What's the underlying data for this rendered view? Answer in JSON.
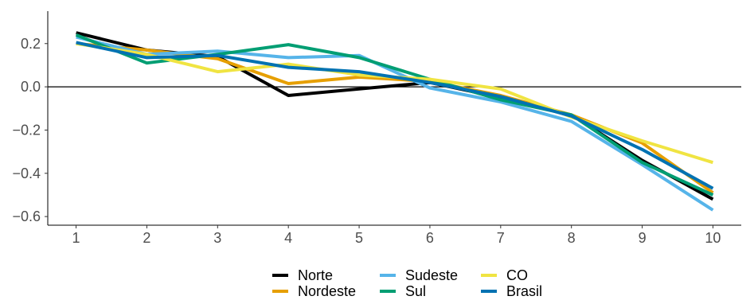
{
  "chart_data": {
    "type": "line",
    "title": "",
    "xlabel": "",
    "ylabel": "",
    "x": [
      1,
      2,
      3,
      4,
      5,
      6,
      7,
      8,
      9,
      10
    ],
    "xlim": [
      0.6,
      10.4
    ],
    "ylim": [
      -0.64,
      0.35
    ],
    "yticks": [
      0.2,
      0.0,
      -0.2,
      -0.4,
      -0.6
    ],
    "ytick_labels": [
      "0.2",
      "0.0",
      "−0.2",
      "−0.4",
      "−0.6"
    ],
    "xtick_labels": [
      "1",
      "2",
      "3",
      "4",
      "5",
      "6",
      "7",
      "8",
      "9",
      "10"
    ],
    "reference_line_y": 0,
    "grid": false,
    "legend_position": "bottom",
    "series": [
      {
        "name": "Norte",
        "color": "#000000",
        "values": [
          0.25,
          0.17,
          0.14,
          -0.04,
          -0.01,
          0.02,
          -0.05,
          -0.13,
          -0.34,
          -0.52
        ]
      },
      {
        "name": "Nordeste",
        "color": "#E69F00",
        "values": [
          0.2,
          0.17,
          0.13,
          0.015,
          0.045,
          0.025,
          -0.04,
          -0.13,
          -0.26,
          -0.49
        ]
      },
      {
        "name": "Sudeste",
        "color": "#56B4E9",
        "values": [
          0.23,
          0.15,
          0.165,
          0.135,
          0.145,
          -0.005,
          -0.07,
          -0.16,
          -0.36,
          -0.57
        ]
      },
      {
        "name": "Sul",
        "color": "#009E73",
        "values": [
          0.24,
          0.11,
          0.15,
          0.195,
          0.135,
          0.035,
          -0.06,
          -0.13,
          -0.35,
          -0.5
        ]
      },
      {
        "name": "CO",
        "color": "#F0E442",
        "values": [
          0.2,
          0.15,
          0.07,
          0.105,
          0.055,
          0.035,
          -0.01,
          -0.14,
          -0.25,
          -0.35
        ]
      },
      {
        "name": "Brasil",
        "color": "#0072B2",
        "values": [
          0.205,
          0.135,
          0.145,
          0.09,
          0.07,
          0.02,
          -0.045,
          -0.135,
          -0.29,
          -0.47
        ]
      }
    ],
    "legend_order": [
      "Norte",
      "Nordeste",
      "Sudeste",
      "Sul",
      "CO",
      "Brasil"
    ]
  }
}
